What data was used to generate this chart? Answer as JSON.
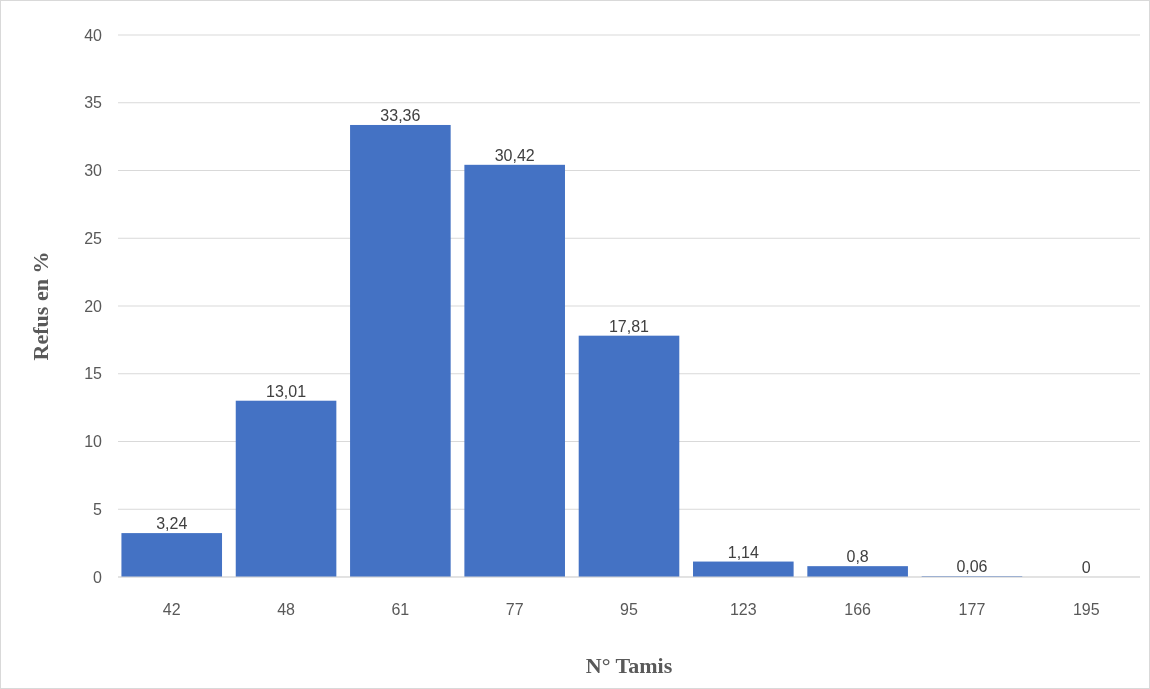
{
  "chart_data": {
    "type": "bar",
    "xlabel": "N° Tamis",
    "ylabel": "Refus en %",
    "categories": [
      "42",
      "48",
      "61",
      "77",
      "95",
      "123",
      "166",
      "177",
      "195"
    ],
    "values": [
      3.24,
      13.01,
      33.36,
      30.42,
      17.81,
      1.14,
      0.8,
      0.06,
      0
    ],
    "value_labels": [
      "3,24",
      "13,01",
      "33,36",
      "30,42",
      "17,81",
      "1,14",
      "0,8",
      "0,06",
      "0"
    ],
    "color": "#4472c4",
    "ylim": [
      0,
      40
    ],
    "yticks": [
      0,
      5,
      10,
      15,
      20,
      25,
      30,
      35,
      40
    ],
    "grid": "y"
  }
}
